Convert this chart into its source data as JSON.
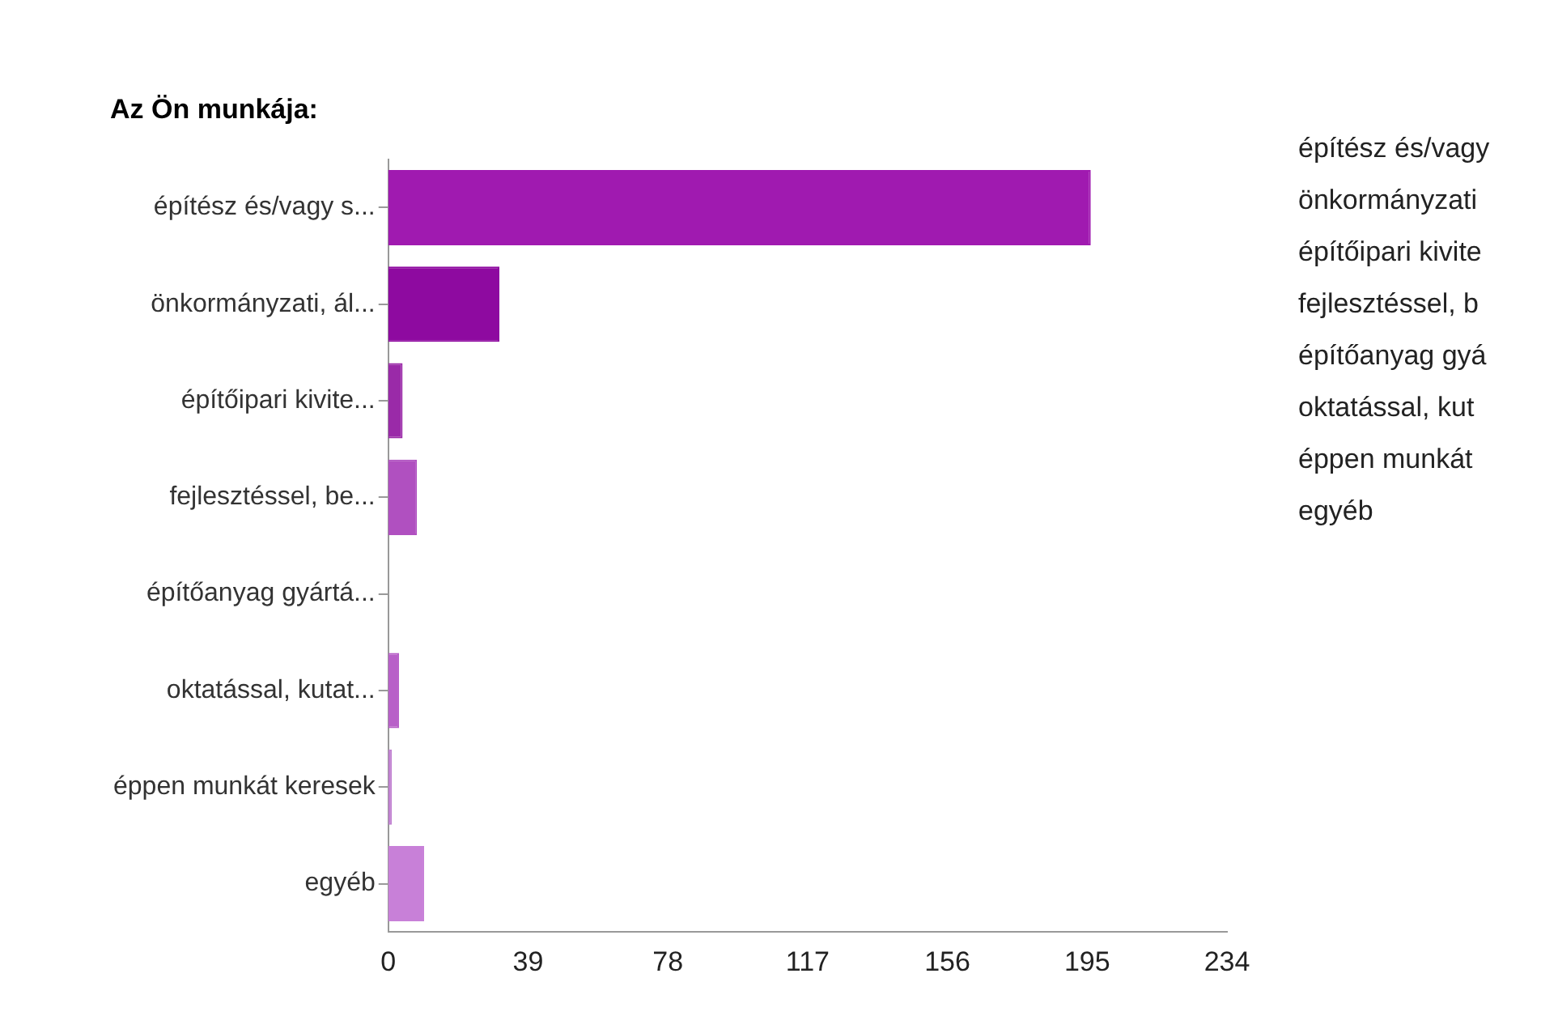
{
  "chart_data": {
    "type": "bar",
    "orientation": "horizontal",
    "title": "Az Ön munkája:",
    "categories": [
      "építész és/vagy s...",
      "önkormányzati, ál...",
      "építőipari kivite...",
      "fejlesztéssel, be...",
      "építőanyag gyártá...",
      "oktatással, kutat...",
      "éppen munkát keresek",
      "egyéb"
    ],
    "values": [
      196,
      31,
      4,
      8,
      0,
      3,
      1,
      10
    ],
    "colors": [
      "#a01ab0",
      "#8e0aa0",
      "#9a2aa8",
      "#b050c0",
      "#b458c4",
      "#b860c8",
      "#c080d0",
      "#c880d8"
    ],
    "xlim": [
      0,
      234
    ],
    "xticks": [
      0,
      39,
      78,
      117,
      156,
      195,
      234
    ],
    "grid": false,
    "legend": false,
    "annotations": [
      "építész és/vagy",
      "önkormányzati",
      "építőipari kivite",
      "fejlesztéssel, b",
      "építőanyag gyá",
      "oktatással, kut",
      "éppen munkát",
      "egyéb"
    ]
  }
}
